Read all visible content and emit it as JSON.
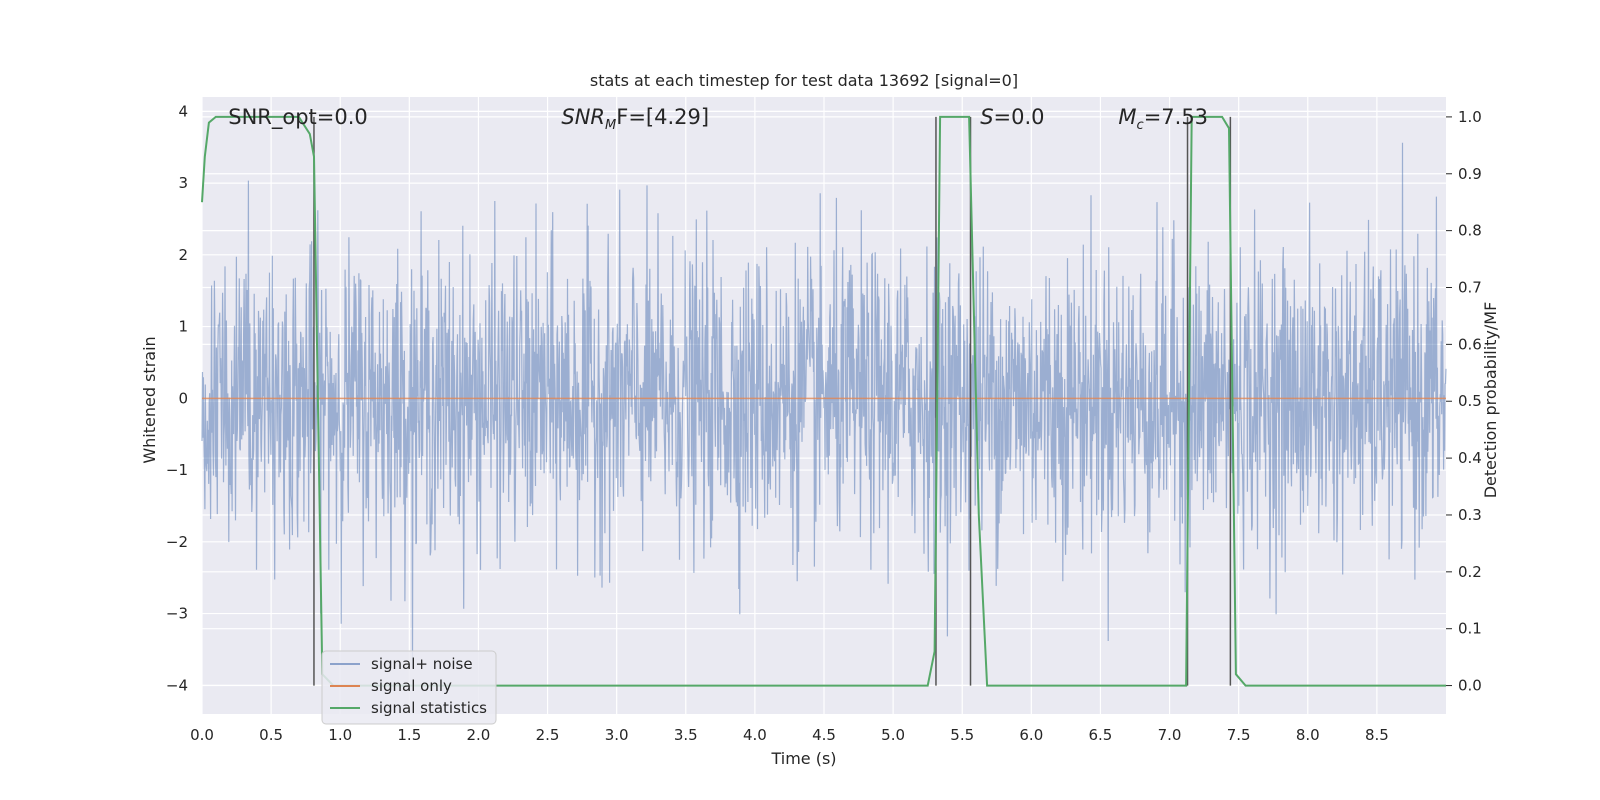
{
  "chart_data": {
    "type": "line",
    "title": "stats at each timestep for test data 13692 [signal=0]",
    "xlabel": "Time (s)",
    "ylabel": "Whitened strain",
    "y2label": "Detection probability/MF",
    "xlim": [
      0.0,
      9.0
    ],
    "ylim": [
      -4.4,
      4.2
    ],
    "y2lim": [
      -0.05,
      1.035
    ],
    "xticks": [
      "0.0",
      "0.5",
      "1.0",
      "1.5",
      "2.0",
      "2.5",
      "3.0",
      "3.5",
      "4.0",
      "4.5",
      "5.0",
      "5.5",
      "6.0",
      "6.5",
      "7.0",
      "7.5",
      "8.0",
      "8.5"
    ],
    "yticks": [
      "−4",
      "−3",
      "−2",
      "−1",
      "0",
      "1",
      "2",
      "3",
      "4"
    ],
    "y2ticks": [
      "0.0",
      "0.1",
      "0.2",
      "0.3",
      "0.4",
      "0.5",
      "0.6",
      "0.7",
      "0.8",
      "0.9",
      "1.0"
    ],
    "grid": true,
    "annotations": [
      {
        "name": "snr-opt",
        "text": "SNR_opt=0.0",
        "x": 0.19
      },
      {
        "name": "snr-mf",
        "pre": "SNR",
        "sub": "M",
        "post": "F=[4.29]",
        "x": 2.6
      },
      {
        "name": "s-stat",
        "pre": "S",
        "sub": "",
        "post": "=0.0",
        "x": 5.63
      },
      {
        "name": "mc",
        "pre": "M",
        "sub": "c",
        "post": "=7.53",
        "x": 6.63
      }
    ],
    "series": [
      {
        "name": "signal+ noise",
        "color": "#4c72b0",
        "kind": "noise",
        "amplitude_std": 1.0,
        "y_range": [
          -3.8,
          3.8
        ]
      },
      {
        "name": "signal only",
        "color": "#dd8452",
        "kind": "constant",
        "value": 0.0
      },
      {
        "name": "signal statistics",
        "color": "#55a868",
        "axis": "right",
        "x": [
          0.0,
          0.02,
          0.05,
          0.1,
          0.7,
          0.78,
          0.81,
          0.87,
          0.95,
          5.0,
          5.25,
          5.3,
          5.34,
          5.55,
          5.62,
          5.68,
          7.0,
          7.12,
          7.16,
          7.2,
          7.38,
          7.43,
          7.48,
          7.55,
          9.0
        ],
        "y": [
          0.85,
          0.93,
          0.99,
          1.0,
          1.0,
          0.97,
          0.93,
          0.02,
          0.0,
          0.0,
          0.0,
          0.06,
          1.0,
          1.0,
          0.3,
          0.0,
          0.0,
          0.0,
          1.0,
          1.0,
          1.0,
          0.98,
          0.02,
          0.0,
          0.0
        ]
      }
    ],
    "vlines": [
      0.81,
      5.31,
      5.56,
      7.13,
      7.44
    ],
    "vline_color": "#555555",
    "legend": {
      "placement": "lower-left",
      "entries": [
        "signal+ noise",
        "signal only",
        "signal statistics"
      ]
    }
  }
}
